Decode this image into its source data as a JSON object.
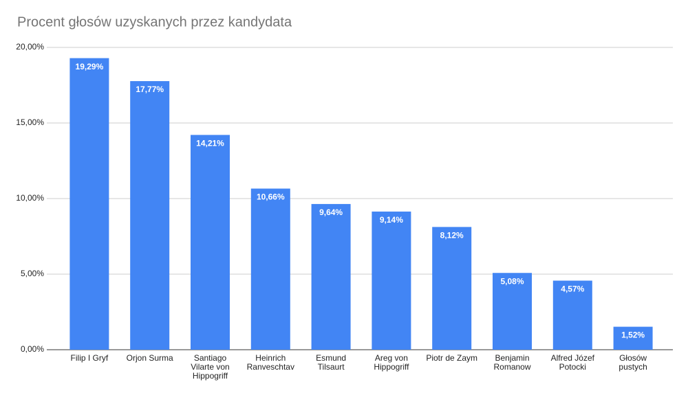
{
  "chart_data": {
    "type": "bar",
    "title": "Procent głosów uzyskanych przez kandydata",
    "categories": [
      "Filip I Gryf",
      "Orjon Surma",
      "Santiago Vilarte von Hippogriff",
      "Heinrich Ranveschtav",
      "Esmund Tilsaurt",
      "Areg von Hippogriff",
      "Piotr de Zaym",
      "Benjamin Romanow",
      "Alfred Józef Potocki",
      "Głosów pustych"
    ],
    "values": [
      19.29,
      17.77,
      14.21,
      10.66,
      9.64,
      9.14,
      8.12,
      5.08,
      4.57,
      1.52
    ],
    "value_labels": [
      "19,29%",
      "17,77%",
      "14,21%",
      "10,66%",
      "9,64%",
      "9,14%",
      "8,12%",
      "5,08%",
      "4,57%",
      "1,52%"
    ],
    "color": "#4285f4",
    "ylim": [
      0,
      20
    ],
    "yticks": [
      {
        "value": 0,
        "label": "0,00%"
      },
      {
        "value": 5,
        "label": "5,00%"
      },
      {
        "value": 10,
        "label": "10,00%"
      },
      {
        "value": 15,
        "label": "15,00%"
      },
      {
        "value": 20,
        "label": "20,00%"
      }
    ],
    "grid": true
  }
}
